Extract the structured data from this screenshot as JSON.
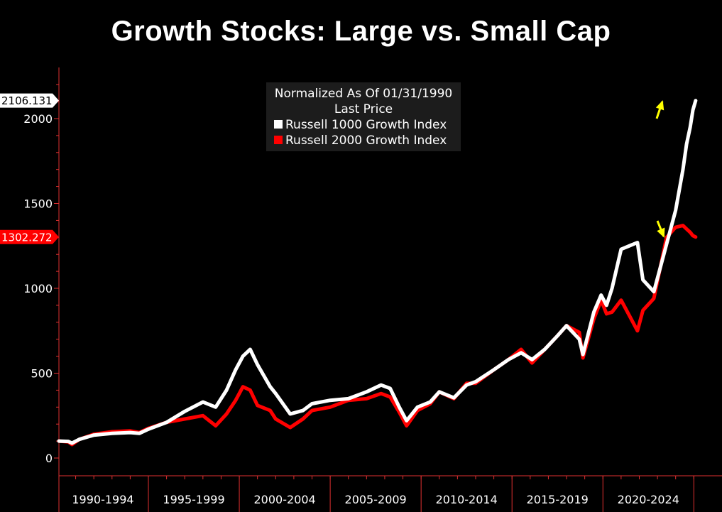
{
  "chart_data": {
    "type": "line",
    "title": "Growth Stocks: Large vs. Small Cap",
    "legend": {
      "placement": "top-center",
      "header": [
        "Normalized As Of 01/31/1990",
        "Last Price"
      ]
    },
    "x_periods": [
      "1990-1994",
      "1995-1999",
      "2000-2004",
      "2005-2009",
      "2010-2014",
      "2015-2019",
      "2020-2024"
    ],
    "xlim": [
      1990.08,
      2025.3
    ],
    "ylim": [
      -50,
      2300
    ],
    "y_ticks": [
      "0",
      "500",
      "1000",
      "1500",
      "2000"
    ],
    "grid": false,
    "series": [
      {
        "name": "Russell 1000 Growth Index",
        "color": "#ffffff",
        "last_value": "2106.131",
        "x": [
          1990.08,
          1990.6,
          1990.8,
          1991.2,
          1992,
          1993,
          1994,
          1994.5,
          1995,
          1996,
          1997,
          1998,
          1998.7,
          1999.3,
          1999.8,
          2000.2,
          2000.6,
          2001,
          2001.7,
          2002,
          2002.8,
          2003.5,
          2004,
          2005,
          2006,
          2007,
          2007.8,
          2008.3,
          2008.8,
          2009.2,
          2009.8,
          2010.5,
          2011,
          2011.8,
          2012.5,
          2013,
          2014,
          2014.8,
          2015.5,
          2016.1,
          2016.8,
          2017.5,
          2018,
          2018.7,
          2018.9,
          2019.5,
          2019.9,
          2020.2,
          2020.5,
          2021,
          2021.9,
          2022.2,
          2022.8,
          2023.5,
          2024,
          2024.4,
          2024.6,
          2024.8,
          2024.95,
          2025.1
        ],
        "y": [
          100,
          98,
          88,
          110,
          135,
          145,
          150,
          145,
          170,
          210,
          275,
          330,
          300,
          400,
          520,
          600,
          640,
          550,
          420,
          380,
          260,
          280,
          320,
          340,
          350,
          390,
          430,
          410,
          300,
          220,
          300,
          330,
          390,
          355,
          430,
          450,
          520,
          580,
          620,
          580,
          640,
          720,
          780,
          700,
          610,
          860,
          960,
          900,
          1000,
          1230,
          1270,
          1050,
          980,
          1260,
          1460,
          1700,
          1850,
          1950,
          2050,
          2106
        ]
      },
      {
        "name": "Russell 2000 Growth Index",
        "color": "#ff0000",
        "last_value": "1302.272",
        "x": [
          1990.08,
          1990.6,
          1990.8,
          1991.2,
          1992,
          1993,
          1994,
          1994.5,
          1995,
          1996,
          1997,
          1998,
          1998.7,
          1999.3,
          1999.8,
          2000.2,
          2000.6,
          2001,
          2001.7,
          2002,
          2002.8,
          2003.5,
          2004,
          2005,
          2006,
          2007,
          2007.8,
          2008.3,
          2008.8,
          2009.2,
          2009.8,
          2010.5,
          2011,
          2011.8,
          2012.5,
          2013,
          2014,
          2014.8,
          2015.5,
          2016.1,
          2016.8,
          2017.5,
          2018,
          2018.7,
          2018.9,
          2019.5,
          2019.9,
          2020.2,
          2020.5,
          2021,
          2021.9,
          2022.2,
          2022.8,
          2023.5,
          2024,
          2024.4,
          2024.6,
          2024.8,
          2024.95,
          2025.1
        ],
        "y": [
          100,
          95,
          80,
          110,
          140,
          155,
          160,
          150,
          175,
          210,
          230,
          250,
          190,
          260,
          340,
          420,
          400,
          310,
          280,
          230,
          180,
          230,
          280,
          300,
          340,
          350,
          380,
          360,
          270,
          190,
          280,
          320,
          390,
          350,
          440,
          440,
          520,
          580,
          640,
          560,
          640,
          720,
          780,
          740,
          590,
          820,
          930,
          850,
          860,
          930,
          750,
          870,
          940,
          1300,
          1360,
          1370,
          1350,
          1330,
          1310,
          1302
        ]
      }
    ]
  }
}
